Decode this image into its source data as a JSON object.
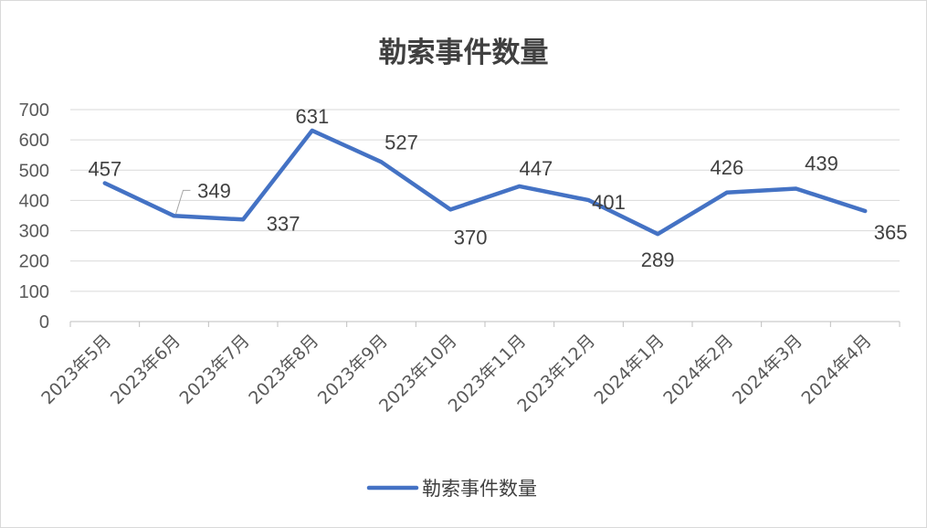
{
  "chart_data": {
    "type": "line",
    "title": "勒索事件数量",
    "xlabel": "",
    "ylabel": "",
    "categories": [
      "2023年5月",
      "2023年6月",
      "2023年7月",
      "2023年8月",
      "2023年9月",
      "2023年10月",
      "2023年11月",
      "2023年12月",
      "2024年1月",
      "2024年2月",
      "2024年3月",
      "2024年4月"
    ],
    "series": [
      {
        "name": "勒索事件数量",
        "values": [
          457,
          349,
          337,
          631,
          527,
          370,
          447,
          401,
          289,
          426,
          439,
          365
        ],
        "color": "#4472c4"
      }
    ],
    "ylim": [
      0,
      700
    ],
    "yticks": [
      0,
      100,
      200,
      300,
      400,
      500,
      600,
      700
    ],
    "grid": true,
    "legend_position": "bottom",
    "data_labels": true
  }
}
